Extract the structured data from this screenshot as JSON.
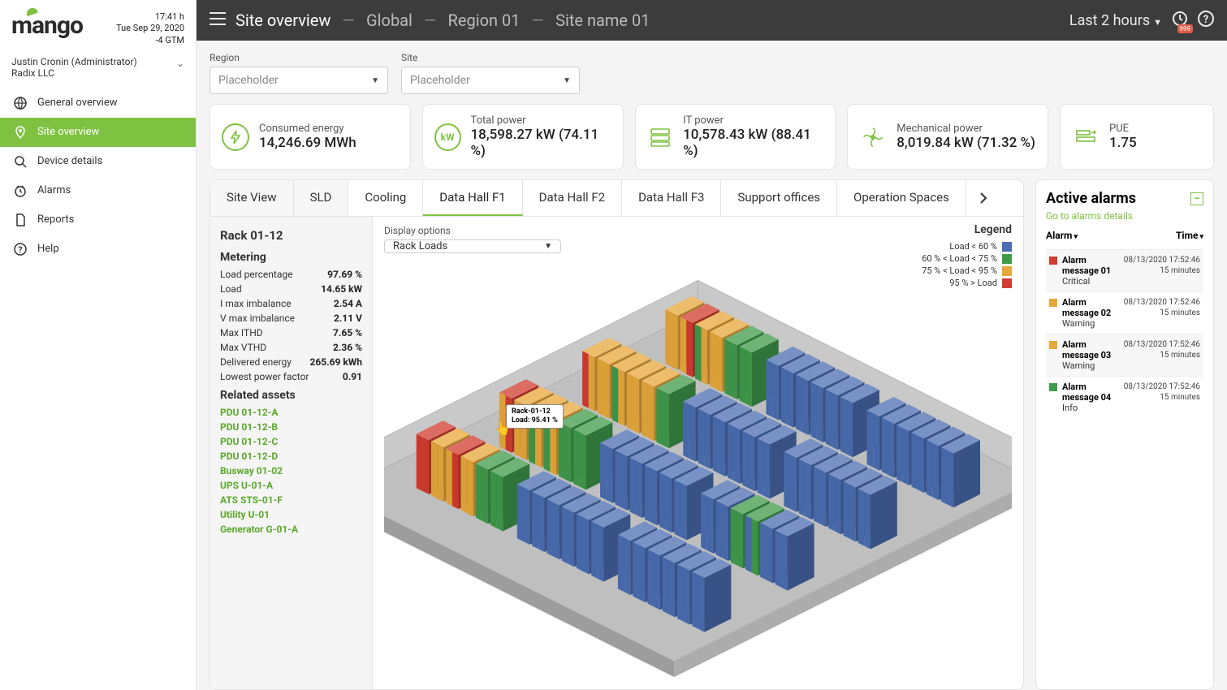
{
  "brand": {
    "name": "mango"
  },
  "clock": {
    "time": "17:41 h",
    "date": "Tue Sep 29, 2020",
    "tz": "-4 GTM"
  },
  "user": {
    "name": "Justin Cronin (Administrator)",
    "org": "Radix LLC"
  },
  "nav": {
    "items": [
      {
        "icon": "globe",
        "label": "General overview"
      },
      {
        "icon": "pin",
        "label": "Site overview",
        "active": true
      },
      {
        "icon": "search",
        "label": "Device details"
      },
      {
        "icon": "clock",
        "label": "Alarms"
      },
      {
        "icon": "doc",
        "label": "Reports"
      },
      {
        "icon": "help",
        "label": "Help"
      }
    ]
  },
  "breadcrumbs": {
    "top": "Site overview",
    "items": [
      "Global",
      "Region 01",
      "Site name 01"
    ]
  },
  "time_range": {
    "label": "Last 2 hours"
  },
  "alarm_badge": "999",
  "filters": {
    "region": {
      "label": "Region",
      "placeholder": "Placeholder"
    },
    "site": {
      "label": "Site",
      "placeholder": "Placeholder"
    }
  },
  "kpis": [
    {
      "icon": "bolt",
      "label": "Consumed energy",
      "value": "14,246.69 MWh"
    },
    {
      "icon": "kw",
      "label": "Total power",
      "value": "18,598.27 kW (74.11 %)"
    },
    {
      "icon": "server",
      "label": "IT power",
      "value": "10,578.43 kW (88.41 %)"
    },
    {
      "icon": "fan",
      "label": "Mechanical power",
      "value": "8,019.84 kW (71.32 %)"
    },
    {
      "icon": "pue",
      "label": "PUE",
      "value": "1.75"
    }
  ],
  "tabs": [
    {
      "label": "Site View",
      "shaded": true
    },
    {
      "label": "SLD",
      "shaded": true
    },
    {
      "label": "Cooling"
    },
    {
      "label": "Data Hall F1",
      "active": true
    },
    {
      "label": "Data Hall F2"
    },
    {
      "label": "Data Hall F3"
    },
    {
      "label": "Support offices"
    },
    {
      "label": "Operation Spaces"
    }
  ],
  "rack_panel": {
    "title": "Rack 01-12",
    "metering_label": "Metering",
    "metering": [
      {
        "k": "Load percentage",
        "v": "97.69 %"
      },
      {
        "k": "Load",
        "v": "14.65 kW"
      },
      {
        "k": "I max imbalance",
        "v": "2.54 A"
      },
      {
        "k": "V max imbalance",
        "v": "2.11 V"
      },
      {
        "k": "Max ITHD",
        "v": "7.65 %"
      },
      {
        "k": "Max VTHD",
        "v": "2.36 %"
      },
      {
        "k": "Delivered energy",
        "v": "265.69 kWh"
      },
      {
        "k": "Lowest power factor",
        "v": "0.91"
      }
    ],
    "related_label": "Related assets",
    "assets": [
      "PDU 01-12-A",
      "PDU 01-12-B",
      "PDU 01-12-C",
      "PDU 01-12-D",
      "Busway 01-02",
      "UPS U-01-A",
      "ATS STS-01-F",
      "Utility U-01",
      "Generator G-01-A"
    ]
  },
  "display_options": {
    "label": "Display options",
    "value": "Rack Loads"
  },
  "tooltip": {
    "line1": "Rack-01-12",
    "line2": "Load: 95.41 %"
  },
  "legend": {
    "title": "Legend",
    "items": [
      {
        "label": "Load < 60 %",
        "color": "#4b6db1"
      },
      {
        "label": "60 % < Load < 75 %",
        "color": "#3f9a4a"
      },
      {
        "label": "75 % < Load < 95 %",
        "color": "#e7a73b"
      },
      {
        "label": "95 % > Load",
        "color": "#d23b2f"
      }
    ]
  },
  "alarms": {
    "title": "Active alarms",
    "goto": "Go to alarms details",
    "col_alarm": "Alarm",
    "col_time": "Time",
    "items": [
      {
        "msg": "Alarm message 01",
        "sev": "Critical",
        "color": "#d23b2f",
        "ts": "08/13/2020 17:52:46",
        "ago": "15 minutes",
        "shaded": true
      },
      {
        "msg": "Alarm message 02",
        "sev": "Warning",
        "color": "#e7a73b",
        "ts": "08/13/2020 17:52:46",
        "ago": "15 minutes"
      },
      {
        "msg": "Alarm message 03",
        "sev": "Warning",
        "color": "#e7a73b",
        "ts": "08/13/2020 17:52:46",
        "ago": "15 minutes",
        "shaded": true
      },
      {
        "msg": "Alarm message 04",
        "sev": "Info",
        "color": "#3f9a4a",
        "ts": "08/13/2020 17:52:46",
        "ago": "15 minutes"
      }
    ]
  },
  "rackmap": {
    "colors": {
      "blue": "#4b6db1",
      "green": "#3f9a4a",
      "orange": "#e7a73b",
      "red": "#d23b2f",
      "floor": "#bfbfbf",
      "wall": "#9a9a9a",
      "wall_light": "#c9c9c9"
    },
    "rows": [
      {
        "y": 0,
        "groups": [
          {
            "x": 0,
            "racks": [
              {
                "c": [
                  "orange",
                  "orange"
                ]
              },
              {
                "c": [
                  "red",
                  "orange"
                ]
              },
              {
                "c": [
                  "orange",
                  "green"
                ]
              },
              {
                "c": [
                  "orange",
                  "orange"
                ]
              },
              {
                "c": [
                  "green",
                  "green"
                ]
              },
              {
                "c": [
                  "green",
                  "green"
                ]
              }
            ]
          },
          {
            "x": 1,
            "racks": [
              {
                "c": [
                  "blue",
                  "blue"
                ]
              },
              {
                "c": [
                  "blue",
                  "blue"
                ]
              },
              {
                "c": [
                  "blue",
                  "blue"
                ]
              },
              {
                "c": [
                  "blue",
                  "blue"
                ]
              },
              {
                "c": [
                  "blue",
                  "blue"
                ]
              },
              {
                "c": [
                  "blue",
                  "blue"
                ]
              }
            ]
          },
          {
            "x": 2,
            "racks": [
              {
                "c": [
                  "blue",
                  "blue"
                ]
              },
              {
                "c": [
                  "blue",
                  "blue"
                ]
              },
              {
                "c": [
                  "blue",
                  "blue"
                ]
              },
              {
                "c": [
                  "blue",
                  "blue"
                ]
              },
              {
                "c": [
                  "blue",
                  "blue"
                ]
              },
              {
                "c": [
                  "blue",
                  "blue"
                ]
              }
            ]
          }
        ]
      },
      {
        "y": 1,
        "groups": [
          {
            "x": 0,
            "racks": [
              {
                "c": [
                  "orange",
                  "red"
                ]
              },
              {
                "c": [
                  "orange",
                  "orange"
                ]
              },
              {
                "c": [
                  "orange",
                  "green"
                ]
              },
              {
                "c": [
                  "orange",
                  "orange"
                ]
              },
              {
                "c": [
                  "orange",
                  "orange"
                ]
              },
              {
                "c": [
                  "green",
                  "green"
                ]
              }
            ]
          },
          {
            "x": 1,
            "racks": [
              {
                "c": [
                  "blue",
                  "blue"
                ]
              },
              {
                "c": [
                  "blue",
                  "blue"
                ]
              },
              {
                "c": [
                  "blue",
                  "blue"
                ]
              },
              {
                "c": [
                  "blue",
                  "blue"
                ]
              },
              {
                "c": [
                  "blue",
                  "blue"
                ]
              },
              {
                "c": [
                  "blue",
                  "blue"
                ]
              }
            ]
          },
          {
            "x": 2,
            "racks": [
              {
                "c": [
                  "blue",
                  "blue"
                ]
              },
              {
                "c": [
                  "blue",
                  "blue"
                ]
              },
              {
                "c": [
                  "blue",
                  "blue"
                ]
              },
              {
                "c": [
                  "blue",
                  "blue"
                ]
              },
              {
                "c": [
                  "blue",
                  "blue"
                ]
              },
              {
                "c": [
                  "blue",
                  "blue"
                ]
              }
            ]
          }
        ]
      },
      {
        "y": 2,
        "groups": [
          {
            "x": 0,
            "racks": [
              {
                "c": [
                  "red",
                  "orange"
                ]
              },
              {
                "c": [
                  "orange",
                  "orange"
                ]
              },
              {
                "c": [
                  "orange",
                  "green"
                ]
              },
              {
                "c": [
                  "orange",
                  "green"
                ]
              },
              {
                "c": [
                  "green",
                  "green"
                ]
              },
              {
                "c": [
                  "green",
                  "green"
                ]
              }
            ]
          },
          {
            "x": 1,
            "racks": [
              {
                "c": [
                  "blue",
                  "blue"
                ]
              },
              {
                "c": [
                  "blue",
                  "blue"
                ]
              },
              {
                "c": [
                  "blue",
                  "blue"
                ]
              },
              {
                "c": [
                  "blue",
                  "blue"
                ]
              },
              {
                "c": [
                  "blue",
                  "blue"
                ]
              },
              {
                "c": [
                  "blue",
                  "blue"
                ]
              }
            ]
          },
          {
            "x": 2,
            "racks": [
              {
                "c": [
                  "blue",
                  "blue"
                ]
              },
              {
                "c": [
                  "blue",
                  "blue"
                ]
              },
              {
                "c": [
                  "green",
                  "green"
                ]
              },
              {
                "c": [
                  "green",
                  "blue"
                ]
              },
              {
                "c": [
                  "blue",
                  "blue"
                ]
              },
              {
                "c": [
                  "blue",
                  "blue"
                ]
              }
            ]
          }
        ]
      },
      {
        "y": 3,
        "groups": [
          {
            "x": 0,
            "racks": [
              {
                "c": [
                  "red",
                  "red"
                ]
              },
              {
                "c": [
                  "orange",
                  "orange"
                ]
              },
              {
                "c": [
                  "red",
                  "orange"
                ]
              },
              {
                "c": [
                  "orange",
                  "orange"
                ]
              },
              {
                "c": [
                  "green",
                  "green"
                ]
              },
              {
                "c": [
                  "green",
                  "green"
                ]
              }
            ]
          },
          {
            "x": 1,
            "racks": [
              {
                "c": [
                  "blue",
                  "blue"
                ]
              },
              {
                "c": [
                  "blue",
                  "blue"
                ]
              },
              {
                "c": [
                  "blue",
                  "blue"
                ]
              },
              {
                "c": [
                  "blue",
                  "blue"
                ]
              },
              {
                "c": [
                  "blue",
                  "blue"
                ]
              },
              {
                "c": [
                  "blue",
                  "blue"
                ]
              }
            ]
          },
          {
            "x": 2,
            "racks": [
              {
                "c": [
                  "blue",
                  "blue"
                ]
              },
              {
                "c": [
                  "blue",
                  "blue"
                ]
              },
              {
                "c": [
                  "blue",
                  "blue"
                ]
              },
              {
                "c": [
                  "blue",
                  "blue"
                ]
              },
              {
                "c": [
                  "blue",
                  "blue"
                ]
              },
              {
                "c": [
                  "blue",
                  "blue"
                ]
              }
            ]
          }
        ]
      }
    ]
  }
}
